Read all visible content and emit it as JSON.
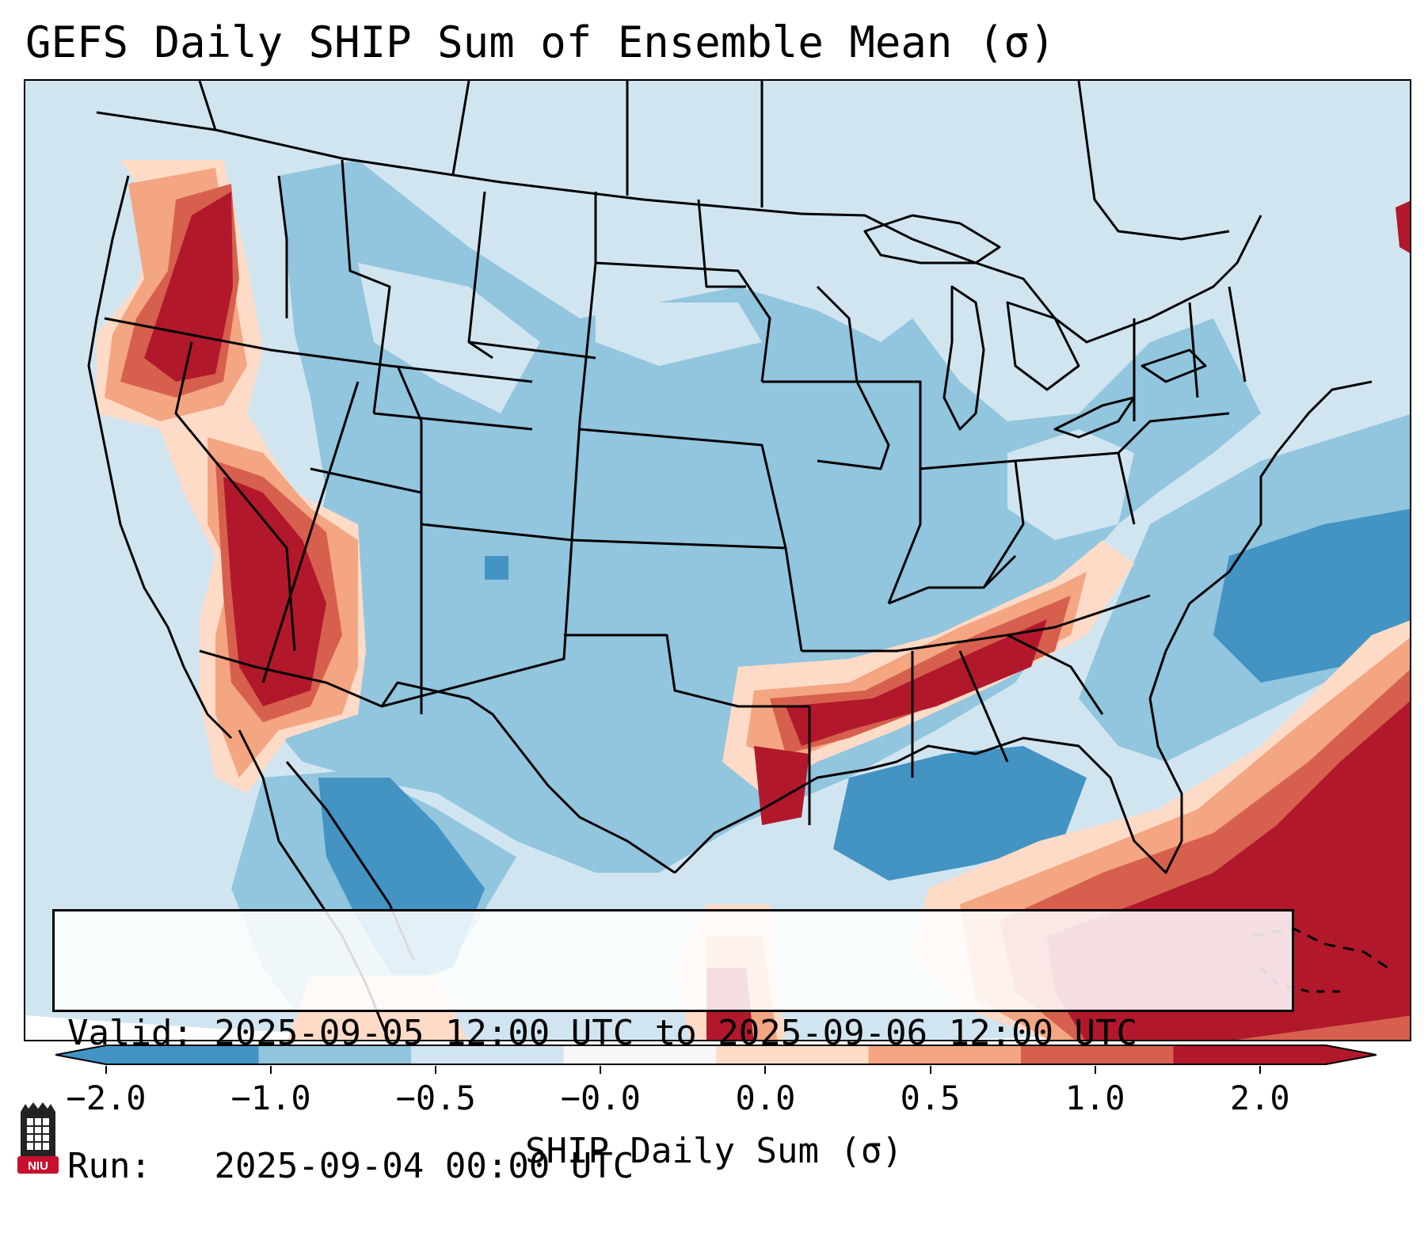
{
  "title": "GEFS Daily SHIP Sum of Ensemble Mean (σ)",
  "info": {
    "valid_label": "Valid:",
    "valid_value": "2025-09-05 12:00 UTC to 2025-09-06 12:00 UTC",
    "run_label": "Run:",
    "run_value": "2025-09-04 00:00 UTC"
  },
  "colorbar": {
    "label": "SHIP Daily Sum (σ)",
    "tick_labels": [
      "−2.0",
      "−1.0",
      "−0.5",
      "−0.0",
      "0.0",
      "0.5",
      "1.0",
      "2.0"
    ],
    "colors": [
      "#4393c3",
      "#92c5de",
      "#d1e5f0",
      "#f7f7f7",
      "#fddbc7",
      "#f4a582",
      "#d6604d",
      "#b2182b"
    ],
    "extend": "both"
  },
  "logo": {
    "text": "NIU",
    "icon": "university-tower-icon"
  },
  "map": {
    "projection": "lambert-conformal",
    "region": "Contiguous United States",
    "colors": {
      "background_ocean": "#d1e5f0",
      "outside_domain": "#ffffff",
      "borders": "#000000"
    }
  }
}
